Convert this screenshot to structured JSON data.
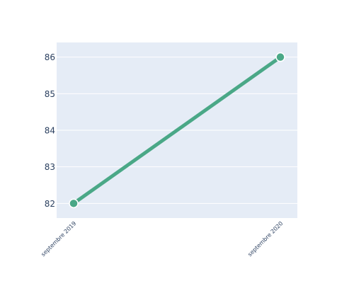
{
  "chart_data": {
    "type": "line",
    "categories": [
      "septembre 2019",
      "septembre 2020"
    ],
    "x": [
      "septembre 2019",
      "septembre 2020"
    ],
    "series": [
      {
        "values": [
          82,
          86
        ],
        "color": "#4aa887"
      }
    ],
    "ylim": [
      81.6,
      86.4
    ],
    "yticks": [
      82,
      83,
      84,
      85,
      86
    ],
    "grid": true,
    "legend": "none",
    "colors": {
      "plot_background": "#e5ecf6",
      "gridline": "#ffffff",
      "tick_text": "#2a3f5f",
      "line": "#4aa887",
      "marker_edge": "#ffffff"
    }
  }
}
